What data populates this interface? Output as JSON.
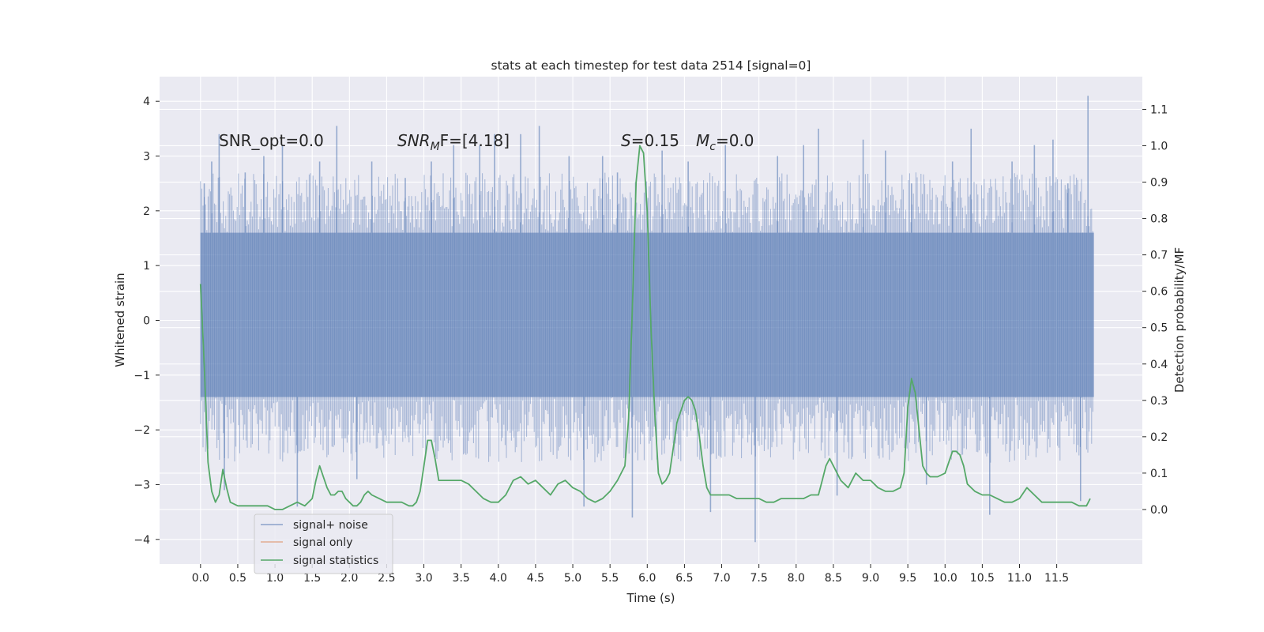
{
  "chart_data": {
    "type": "line",
    "title": "stats at each timestep for test data 2514 [signal=0]",
    "xlabel": "Time (s)",
    "ylabel": "Whitened strain",
    "y2label": "Detection probability/MF",
    "xlim": [
      -0.55,
      12.65
    ],
    "ylim": [
      -4.45,
      4.45
    ],
    "y2lim": [
      -0.15,
      1.19
    ],
    "x_ticks": [
      "0.0",
      "0.5",
      "1.0",
      "1.5",
      "2.0",
      "2.5",
      "3.0",
      "3.5",
      "4.0",
      "4.5",
      "5.0",
      "5.5",
      "6.0",
      "6.5",
      "7.0",
      "7.5",
      "8.0",
      "8.5",
      "9.0",
      "9.5",
      "10.0",
      "10.5",
      "11.0",
      "11.5"
    ],
    "y_ticks": [
      "4",
      "3",
      "2",
      "1",
      "0",
      "−1",
      "−2",
      "−3",
      "−4"
    ],
    "y2_ticks": [
      "1.1",
      "1.0",
      "0.9",
      "0.8",
      "0.7",
      "0.6",
      "0.5",
      "0.4",
      "0.3",
      "0.2",
      "0.1",
      "0.0"
    ],
    "grid": true,
    "legend_position": "lower-left",
    "annotations": {
      "snr_opt": "SNR_opt=0.0",
      "snr_mf_base": "SNR",
      "snr_mf_sub": "M",
      "snr_mf_rest": "F=[4.18]",
      "s_var": "S",
      "s_val": "=0.15",
      "mc_var": "M",
      "mc_sub": "c",
      "mc_val": "=0.0"
    },
    "series": [
      {
        "name": "signal+ noise",
        "color": "#4c72b0",
        "axis": "left",
        "envelope_x": [
          0.0,
          12.0
        ],
        "envelope_typical": [
          -1.4,
          1.6
        ],
        "spikes": [
          [
            0.05,
            2.5
          ],
          [
            0.15,
            2.9
          ],
          [
            0.25,
            3.4
          ],
          [
            0.32,
            -3.1
          ],
          [
            0.6,
            2.7
          ],
          [
            0.85,
            3.0
          ],
          [
            1.1,
            3.2
          ],
          [
            1.3,
            -3.4
          ],
          [
            1.6,
            2.9
          ],
          [
            1.83,
            3.55
          ],
          [
            2.1,
            -2.9
          ],
          [
            2.3,
            2.9
          ],
          [
            2.75,
            2.6
          ],
          [
            3.1,
            2.9
          ],
          [
            3.4,
            3.2
          ],
          [
            3.75,
            3.2
          ],
          [
            3.95,
            3.4
          ],
          [
            4.3,
            3.4
          ],
          [
            4.55,
            3.55
          ],
          [
            4.95,
            3.0
          ],
          [
            5.15,
            -3.4
          ],
          [
            5.4,
            3.0
          ],
          [
            5.6,
            2.7
          ],
          [
            5.8,
            -3.6
          ],
          [
            6.2,
            3.1
          ],
          [
            6.55,
            2.9
          ],
          [
            6.85,
            -3.5
          ],
          [
            7.05,
            3.2
          ],
          [
            7.45,
            -4.05
          ],
          [
            7.75,
            3.0
          ],
          [
            8.1,
            3.2
          ],
          [
            8.3,
            3.5
          ],
          [
            8.55,
            -3.2
          ],
          [
            8.9,
            3.3
          ],
          [
            9.2,
            3.1
          ],
          [
            9.55,
            2.5
          ],
          [
            9.75,
            -3.0
          ],
          [
            10.1,
            2.9
          ],
          [
            10.35,
            3.5
          ],
          [
            10.6,
            -3.55
          ],
          [
            10.9,
            2.9
          ],
          [
            11.2,
            3.2
          ],
          [
            11.45,
            3.3
          ],
          [
            11.65,
            2.5
          ],
          [
            11.82,
            -3.3
          ],
          [
            11.92,
            4.1
          ]
        ]
      },
      {
        "name": "signal only",
        "color": "#dd8452",
        "axis": "left"
      },
      {
        "name": "signal statistics",
        "color": "#55a868",
        "axis": "right",
        "x": [
          0.0,
          0.05,
          0.1,
          0.15,
          0.2,
          0.25,
          0.3,
          0.35,
          0.4,
          0.5,
          0.6,
          0.7,
          0.8,
          0.9,
          1.0,
          1.1,
          1.2,
          1.3,
          1.4,
          1.5,
          1.55,
          1.6,
          1.65,
          1.7,
          1.75,
          1.8,
          1.85,
          1.9,
          1.95,
          2.0,
          2.05,
          2.1,
          2.15,
          2.2,
          2.25,
          2.3,
          2.4,
          2.5,
          2.6,
          2.7,
          2.8,
          2.85,
          2.9,
          2.95,
          3.0,
          3.05,
          3.1,
          3.15,
          3.2,
          3.3,
          3.4,
          3.5,
          3.6,
          3.7,
          3.8,
          3.9,
          4.0,
          4.1,
          4.2,
          4.3,
          4.4,
          4.5,
          4.6,
          4.7,
          4.8,
          4.9,
          5.0,
          5.1,
          5.2,
          5.3,
          5.4,
          5.5,
          5.6,
          5.7,
          5.75,
          5.8,
          5.85,
          5.9,
          5.95,
          6.0,
          6.05,
          6.1,
          6.15,
          6.2,
          6.25,
          6.3,
          6.35,
          6.4,
          6.45,
          6.5,
          6.55,
          6.6,
          6.65,
          6.7,
          6.75,
          6.8,
          6.85,
          6.9,
          7.0,
          7.1,
          7.2,
          7.3,
          7.4,
          7.5,
          7.6,
          7.7,
          7.8,
          7.9,
          8.0,
          8.1,
          8.2,
          8.3,
          8.35,
          8.4,
          8.45,
          8.5,
          8.6,
          8.7,
          8.8,
          8.9,
          9.0,
          9.1,
          9.2,
          9.3,
          9.4,
          9.45,
          9.5,
          9.55,
          9.6,
          9.65,
          9.7,
          9.75,
          9.8,
          9.9,
          10.0,
          10.1,
          10.15,
          10.2,
          10.25,
          10.3,
          10.4,
          10.5,
          10.6,
          10.7,
          10.8,
          10.9,
          11.0,
          11.1,
          11.2,
          11.3,
          11.4,
          11.5,
          11.6,
          11.7,
          11.8,
          11.9,
          11.95
        ],
        "values": [
          0.62,
          0.4,
          0.13,
          0.05,
          0.02,
          0.04,
          0.11,
          0.06,
          0.02,
          0.01,
          0.01,
          0.01,
          0.01,
          0.01,
          0.0,
          0.0,
          0.01,
          0.02,
          0.01,
          0.03,
          0.08,
          0.12,
          0.09,
          0.06,
          0.04,
          0.04,
          0.05,
          0.05,
          0.03,
          0.02,
          0.01,
          0.01,
          0.02,
          0.04,
          0.05,
          0.04,
          0.03,
          0.02,
          0.02,
          0.02,
          0.01,
          0.01,
          0.02,
          0.05,
          0.12,
          0.19,
          0.19,
          0.14,
          0.08,
          0.08,
          0.08,
          0.08,
          0.07,
          0.05,
          0.03,
          0.02,
          0.02,
          0.04,
          0.08,
          0.09,
          0.07,
          0.08,
          0.06,
          0.04,
          0.07,
          0.08,
          0.06,
          0.05,
          0.03,
          0.02,
          0.03,
          0.05,
          0.08,
          0.12,
          0.25,
          0.55,
          0.9,
          1.0,
          0.98,
          0.82,
          0.5,
          0.27,
          0.1,
          0.07,
          0.08,
          0.1,
          0.17,
          0.24,
          0.27,
          0.3,
          0.31,
          0.3,
          0.27,
          0.2,
          0.12,
          0.06,
          0.04,
          0.04,
          0.04,
          0.04,
          0.03,
          0.03,
          0.03,
          0.03,
          0.02,
          0.02,
          0.03,
          0.03,
          0.03,
          0.03,
          0.04,
          0.04,
          0.08,
          0.12,
          0.14,
          0.12,
          0.08,
          0.06,
          0.1,
          0.08,
          0.08,
          0.06,
          0.05,
          0.05,
          0.06,
          0.1,
          0.28,
          0.36,
          0.32,
          0.22,
          0.12,
          0.1,
          0.09,
          0.09,
          0.1,
          0.16,
          0.16,
          0.15,
          0.12,
          0.07,
          0.05,
          0.04,
          0.04,
          0.03,
          0.02,
          0.02,
          0.03,
          0.06,
          0.04,
          0.02,
          0.02,
          0.02,
          0.02,
          0.02,
          0.01,
          0.01,
          0.03
        ]
      }
    ]
  }
}
